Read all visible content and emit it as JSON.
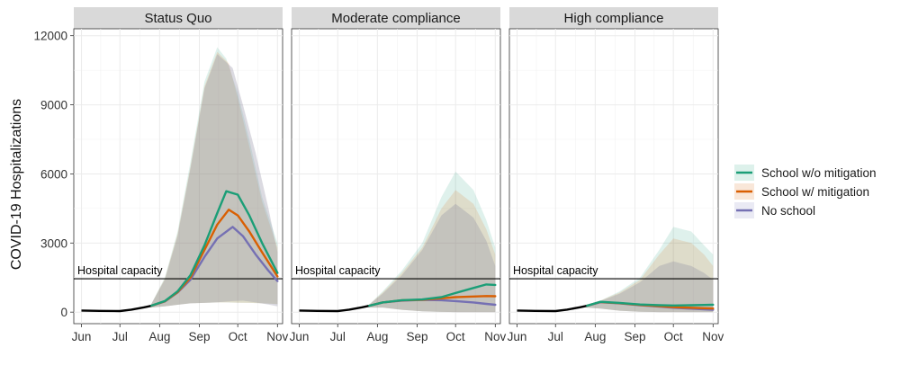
{
  "chart_data": {
    "type": "line",
    "ylabel": "COVID-19 Hospitalizations",
    "xlabel": "",
    "ylim": [
      -500,
      12300
    ],
    "yticks": [
      0,
      3000,
      6000,
      9000,
      12000
    ],
    "y_tick_labels": [
      "0",
      "3000",
      "6000",
      "9000",
      "12000"
    ],
    "x_tick_labels": [
      "Jun",
      "Jul",
      "Aug",
      "Sep",
      "Oct",
      "Nov"
    ],
    "xlim": [
      "2020-05-26",
      "2020-11-05"
    ],
    "x_ticks": [
      "2020-06-01",
      "2020-07-01",
      "2020-08-01",
      "2020-09-01",
      "2020-10-01",
      "2020-11-01"
    ],
    "grid": true,
    "legend_position": "right",
    "legend": [
      "School w/o mitigation",
      "School w/ mitigation",
      "No school"
    ],
    "colors": {
      "School w/o mitigation": "#1b9e77",
      "School w/ mitigation": "#d95f02",
      "No school": "#7570b3",
      "observed": "#000000",
      "capacity": "#000000",
      "panel_bg": "#ffffff",
      "grid": "#ebebeb",
      "strip_bg": "#d9d9d9"
    },
    "hospital_capacity": {
      "label": "Hospital capacity",
      "value": 1450
    },
    "panels": [
      {
        "name": "Status Quo",
        "observed": {
          "x": [
            "2020-06-01",
            "2020-06-15",
            "2020-07-01",
            "2020-07-10",
            "2020-07-20",
            "2020-07-25"
          ],
          "y": [
            70,
            55,
            45,
            110,
            210,
            270
          ]
        },
        "series": [
          {
            "name": "School w/o mitigation",
            "x": [
              "2020-07-25",
              "2020-08-05",
              "2020-08-15",
              "2020-08-25",
              "2020-09-05",
              "2020-09-15",
              "2020-09-22",
              "2020-10-01",
              "2020-10-10",
              "2020-10-20",
              "2020-11-01"
            ],
            "y": [
              270,
              480,
              900,
              1600,
              2900,
              4300,
              5250,
              5100,
              4200,
              3000,
              1700
            ],
            "lower": [
              200,
              250,
              320,
              380,
              400,
              420,
              420,
              410,
              400,
              380,
              350
            ],
            "upper": [
              300,
              1500,
              3500,
              6500,
              10000,
              11500,
              11000,
              9500,
              7500,
              5000,
              3000
            ]
          },
          {
            "name": "School w/ mitigation",
            "x": [
              "2020-07-25",
              "2020-08-05",
              "2020-08-15",
              "2020-08-25",
              "2020-09-05",
              "2020-09-15",
              "2020-09-24",
              "2020-10-01",
              "2020-10-10",
              "2020-10-20",
              "2020-11-01"
            ],
            "y": [
              270,
              470,
              870,
              1500,
              2700,
              3800,
              4450,
              4200,
              3500,
              2600,
              1550
            ],
            "lower": [
              200,
              250,
              320,
              380,
              400,
              420,
              420,
              410,
              400,
              380,
              350
            ],
            "upper": [
              300,
              1450,
              3400,
              6300,
              9800,
              11300,
              10800,
              9300,
              7200,
              4800,
              2800
            ]
          },
          {
            "name": "No school",
            "x": [
              "2020-07-25",
              "2020-08-05",
              "2020-08-15",
              "2020-08-25",
              "2020-09-05",
              "2020-09-15",
              "2020-09-27",
              "2020-10-05",
              "2020-10-15",
              "2020-10-25",
              "2020-11-01"
            ],
            "y": [
              270,
              460,
              850,
              1400,
              2400,
              3200,
              3700,
              3300,
              2500,
              1800,
              1350
            ],
            "lower": [
              200,
              250,
              320,
              380,
              400,
              430,
              480,
              500,
              420,
              330,
              250
            ],
            "upper": [
              300,
              1400,
              3300,
              6200,
              9700,
              11200,
              10600,
              9000,
              6900,
              4500,
              2600
            ]
          }
        ]
      },
      {
        "name": "Moderate compliance",
        "observed": {
          "x": [
            "2020-06-01",
            "2020-06-15",
            "2020-07-01",
            "2020-07-10",
            "2020-07-20",
            "2020-07-25"
          ],
          "y": [
            70,
            55,
            45,
            110,
            210,
            270
          ]
        },
        "series": [
          {
            "name": "School w/o mitigation",
            "x": [
              "2020-07-25",
              "2020-08-05",
              "2020-08-20",
              "2020-09-05",
              "2020-09-20",
              "2020-10-01",
              "2020-10-15",
              "2020-10-25",
              "2020-11-01"
            ],
            "y": [
              270,
              420,
              520,
              550,
              650,
              830,
              1050,
              1200,
              1180
            ],
            "lower": [
              200,
              200,
              100,
              40,
              10,
              5,
              5,
              5,
              5
            ],
            "upper": [
              300,
              900,
              1800,
              3000,
              5000,
              6100,
              5300,
              4000,
              2800
            ]
          },
          {
            "name": "School w/ mitigation",
            "x": [
              "2020-07-25",
              "2020-08-05",
              "2020-08-20",
              "2020-09-05",
              "2020-09-20",
              "2020-10-01",
              "2020-10-15",
              "2020-10-25",
              "2020-11-01"
            ],
            "y": [
              270,
              420,
              510,
              540,
              600,
              650,
              680,
              700,
              690
            ],
            "lower": [
              200,
              200,
              100,
              40,
              10,
              5,
              5,
              5,
              5
            ],
            "upper": [
              300,
              850,
              1700,
              2800,
              4500,
              5300,
              4700,
              3600,
              2500
            ]
          },
          {
            "name": "No school",
            "x": [
              "2020-07-25",
              "2020-08-05",
              "2020-08-20",
              "2020-09-05",
              "2020-09-20",
              "2020-10-01",
              "2020-10-15",
              "2020-10-25",
              "2020-11-01"
            ],
            "y": [
              270,
              420,
              500,
              530,
              520,
              480,
              420,
              360,
              320
            ],
            "lower": [
              200,
              200,
              100,
              40,
              10,
              5,
              5,
              5,
              5
            ],
            "upper": [
              300,
              800,
              1600,
              2700,
              4200,
              4700,
              4100,
              3100,
              2000
            ]
          }
        ]
      },
      {
        "name": "High compliance",
        "observed": {
          "x": [
            "2020-06-01",
            "2020-06-15",
            "2020-07-01",
            "2020-07-10",
            "2020-07-20",
            "2020-07-25"
          ],
          "y": [
            70,
            55,
            45,
            110,
            210,
            270
          ]
        },
        "series": [
          {
            "name": "School w/o mitigation",
            "x": [
              "2020-07-25",
              "2020-08-05",
              "2020-08-20",
              "2020-09-05",
              "2020-09-20",
              "2020-10-01",
              "2020-10-15",
              "2020-10-25",
              "2020-11-01"
            ],
            "y": [
              270,
              450,
              400,
              330,
              300,
              290,
              300,
              310,
              320
            ],
            "lower": [
              200,
              150,
              60,
              20,
              5,
              5,
              5,
              5,
              5
            ],
            "upper": [
              300,
              500,
              900,
              1500,
              2700,
              3700,
              3500,
              2900,
              2500
            ]
          },
          {
            "name": "School w/ mitigation",
            "x": [
              "2020-07-25",
              "2020-08-05",
              "2020-08-20",
              "2020-09-05",
              "2020-09-20",
              "2020-10-01",
              "2020-10-15",
              "2020-10-25",
              "2020-11-01"
            ],
            "y": [
              270,
              440,
              390,
              310,
              260,
              220,
              190,
              170,
              160
            ],
            "lower": [
              200,
              150,
              60,
              20,
              5,
              5,
              5,
              5,
              5
            ],
            "upper": [
              300,
              500,
              850,
              1400,
              2500,
              3200,
              3000,
              2500,
              2000
            ]
          },
          {
            "name": "No school",
            "x": [
              "2020-07-25",
              "2020-08-05",
              "2020-08-20",
              "2020-09-05",
              "2020-09-20",
              "2020-10-01",
              "2020-10-15",
              "2020-10-25",
              "2020-11-01"
            ],
            "y": [
              270,
              430,
              380,
              300,
              240,
              190,
              150,
              120,
              100
            ],
            "lower": [
              200,
              150,
              60,
              20,
              5,
              5,
              5,
              5,
              5
            ],
            "upper": [
              300,
              480,
              800,
              1300,
              2000,
              2200,
              2000,
              1700,
              1400
            ]
          }
        ]
      }
    ]
  }
}
